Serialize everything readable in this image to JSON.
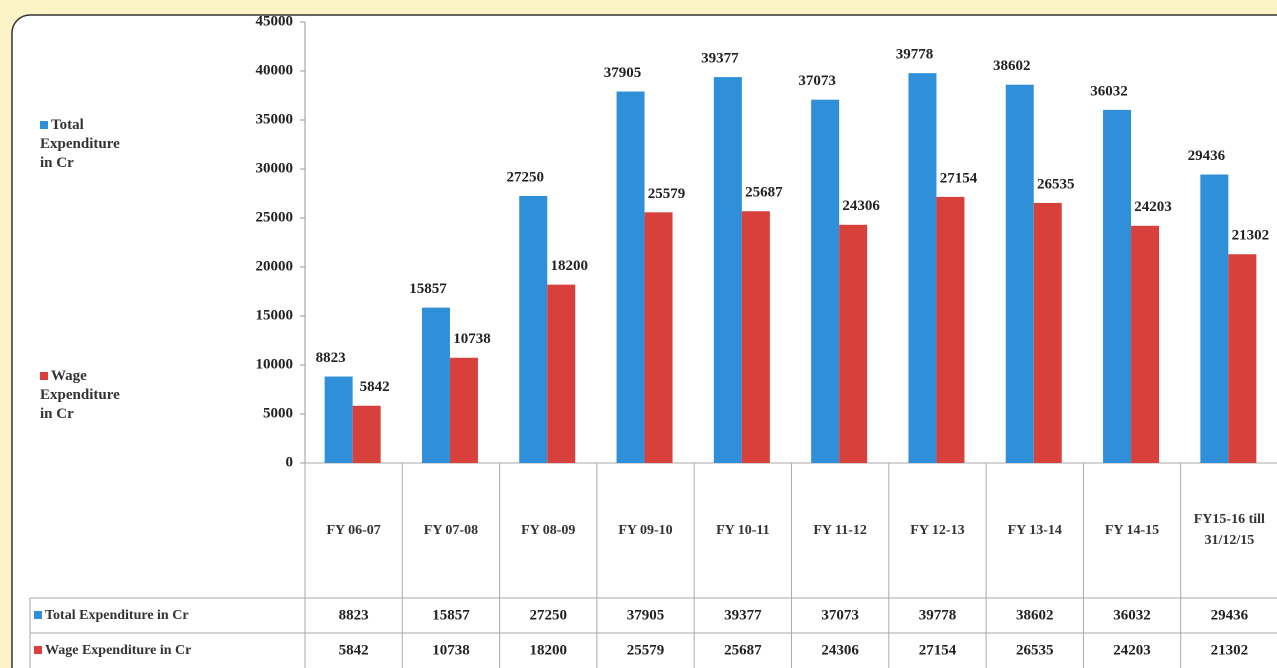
{
  "chart_data": {
    "type": "bar",
    "categories": [
      "FY 06-07",
      "FY 07-08",
      "FY 08-09",
      "FY 09-10",
      "FY 10-11",
      "FY 11-12",
      "FY 12-13",
      "FY 13-14",
      "FY 14-15",
      "FY15-16 till 31/12/15"
    ],
    "series": [
      {
        "name": "Total Expenditure in Cr",
        "color": "#2f8fd8",
        "values": [
          8823,
          15857,
          27250,
          37905,
          39377,
          37073,
          39778,
          38602,
          36032,
          29436
        ]
      },
      {
        "name": "Wage Expenditure in Cr",
        "color": "#d8413b",
        "values": [
          5842,
          10738,
          18200,
          25579,
          25687,
          24306,
          27154,
          26535,
          24203,
          21302
        ]
      }
    ],
    "ylim": [
      0,
      45000
    ],
    "yticks": [
      0,
      5000,
      10000,
      15000,
      20000,
      25000,
      30000,
      35000,
      40000,
      45000
    ],
    "data_table": true
  }
}
